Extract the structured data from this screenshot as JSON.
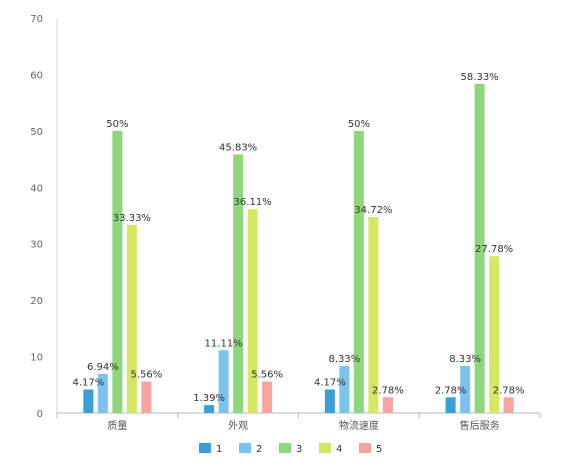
{
  "chart_data": {
    "type": "bar",
    "categories": [
      "质量",
      "外观",
      "物流速度",
      "售后服务"
    ],
    "series": [
      {
        "name": "1",
        "color": "#3a9ed8",
        "values": [
          4.17,
          1.39,
          4.17,
          2.78
        ],
        "labels": [
          "4.17%",
          "1.39%",
          "4.17%",
          "2.78%"
        ]
      },
      {
        "name": "2",
        "color": "#7cc3ef",
        "values": [
          6.94,
          11.11,
          8.33,
          8.33
        ],
        "labels": [
          "6.94%",
          "11.11%",
          "8.33%",
          "8.33%"
        ]
      },
      {
        "name": "3",
        "color": "#8fd77c",
        "values": [
          50,
          45.83,
          50,
          58.33
        ],
        "labels": [
          "50%",
          "45.83%",
          "50%",
          "58.33%"
        ]
      },
      {
        "name": "4",
        "color": "#d6e862",
        "values": [
          33.33,
          36.11,
          34.72,
          27.78
        ],
        "labels": [
          "33.33%",
          "36.11%",
          "34.72%",
          "27.78%"
        ]
      },
      {
        "name": "5",
        "color": "#f7a3a0",
        "values": [
          5.56,
          5.56,
          2.78,
          2.78
        ],
        "labels": [
          "5.56%",
          "5.56%",
          "2.78%",
          "2.78%"
        ]
      }
    ],
    "ylim": [
      0,
      70
    ],
    "yticks": [
      "0",
      "10",
      "20",
      "30",
      "40",
      "50",
      "60",
      "70"
    ],
    "grid": false,
    "legend_position": "bottom-center"
  }
}
